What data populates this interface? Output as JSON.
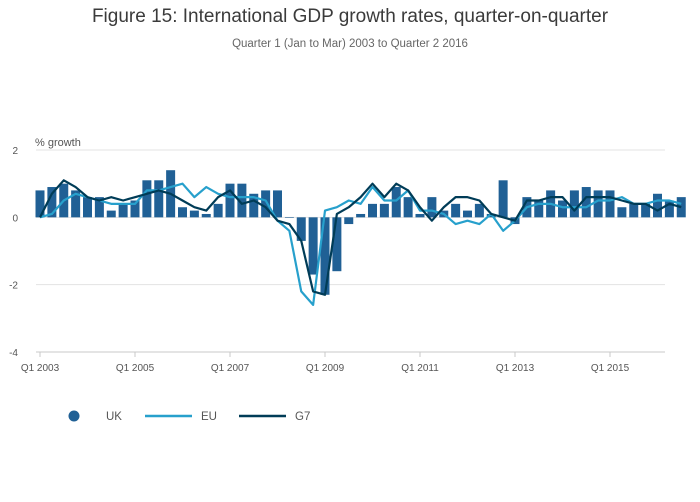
{
  "chart_data": {
    "type": "bar+line",
    "title": "Figure 15: International GDP growth rates, quarter-on-quarter",
    "subtitle": "Quarter 1 (Jan to Mar) 2003 to Quarter 2 2016",
    "ylabel": "% growth",
    "ylim": [
      -4,
      2
    ],
    "yticks": [
      2,
      0,
      -2,
      -4
    ],
    "xticks": [
      "Q1 2003",
      "Q1 2005",
      "Q1 2007",
      "Q1 2009",
      "Q1 2011",
      "Q1 2013",
      "Q1 2015"
    ],
    "grid": true,
    "legend_position": "bottom-left",
    "start": "Q1 2003",
    "series": [
      {
        "name": "UK",
        "type": "bar",
        "color": "#206095",
        "values": [
          0.8,
          0.9,
          1.0,
          0.8,
          0.6,
          0.6,
          0.2,
          0.4,
          0.5,
          1.1,
          1.1,
          1.4,
          0.3,
          0.2,
          0.1,
          0.4,
          1.0,
          1.0,
          0.7,
          0.8,
          0.8,
          0.0,
          -0.7,
          -1.7,
          -2.3,
          -1.6,
          -0.2,
          0.1,
          0.4,
          0.4,
          0.9,
          0.6,
          0.1,
          0.6,
          0.2,
          0.4,
          0.2,
          0.4,
          0.1,
          1.1,
          -0.2,
          0.6,
          0.5,
          0.8,
          0.5,
          0.8,
          0.9,
          0.8,
          0.8,
          0.3,
          0.4,
          0.4,
          0.7,
          0.5,
          0.6
        ]
      },
      {
        "name": "EU",
        "type": "line",
        "color": "#27a0cc",
        "values": [
          0.0,
          0.1,
          0.5,
          0.7,
          0.6,
          0.5,
          0.4,
          0.4,
          0.4,
          0.8,
          0.8,
          0.9,
          1.0,
          0.6,
          0.9,
          0.7,
          0.6,
          0.6,
          0.6,
          0.5,
          -0.1,
          -0.4,
          -2.2,
          -2.6,
          0.2,
          0.3,
          0.5,
          0.4,
          0.9,
          0.5,
          0.5,
          0.8,
          0.2,
          0.2,
          0.1,
          -0.2,
          -0.1,
          -0.2,
          0.1,
          -0.4,
          -0.1,
          0.3,
          0.4,
          0.4,
          0.3,
          0.3,
          0.3,
          0.5,
          0.5,
          0.6,
          0.4,
          0.4,
          0.5,
          0.5,
          0.4
        ]
      },
      {
        "name": "G7",
        "type": "line",
        "color": "#003c57",
        "values": [
          0.0,
          0.7,
          1.1,
          0.9,
          0.6,
          0.5,
          0.6,
          0.5,
          0.6,
          0.7,
          0.8,
          0.7,
          0.5,
          0.3,
          0.2,
          0.6,
          0.8,
          0.4,
          0.5,
          0.3,
          -0.1,
          -0.2,
          -0.7,
          -2.2,
          -2.3,
          0.1,
          0.3,
          0.6,
          1.0,
          0.6,
          1.0,
          0.8,
          0.3,
          -0.1,
          0.3,
          0.6,
          0.6,
          0.5,
          0.1,
          0.0,
          -0.1,
          0.5,
          0.5,
          0.6,
          0.6,
          0.2,
          0.6,
          0.6,
          0.6,
          0.5,
          0.4,
          0.4,
          0.2,
          0.4,
          0.3
        ]
      }
    ]
  }
}
